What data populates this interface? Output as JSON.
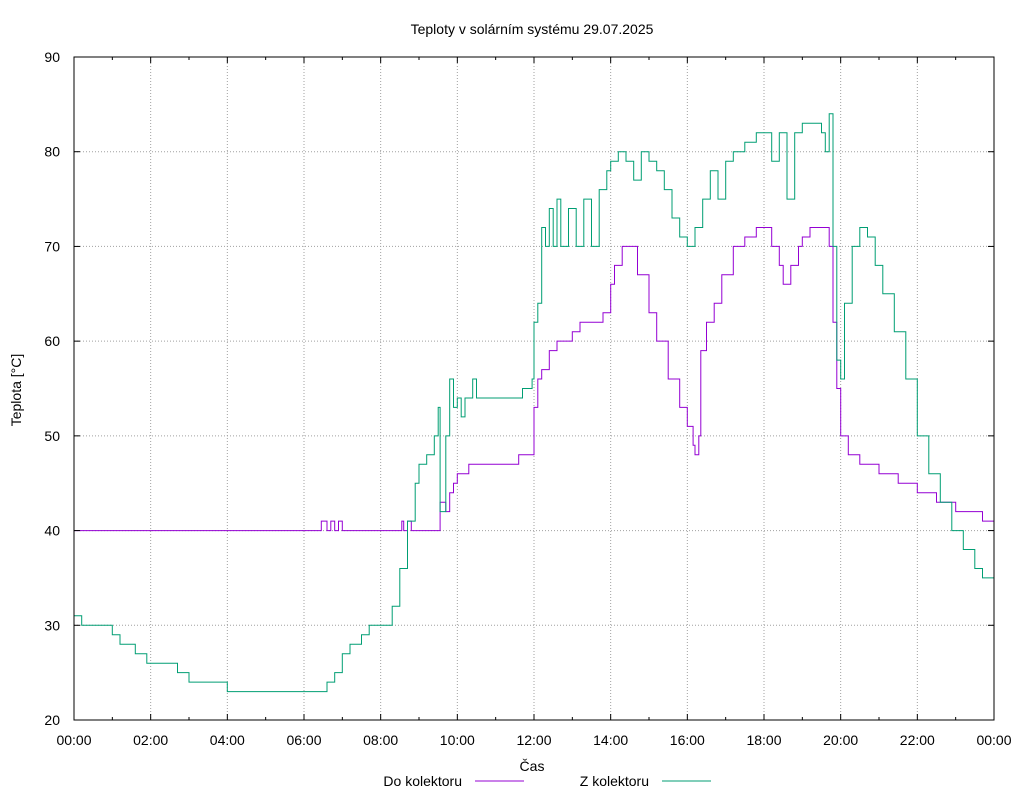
{
  "chart_data": {
    "type": "line",
    "title": "Teploty v solárním systému 29.07.2025",
    "xlabel": "Čas",
    "ylabel": "Teplota [°C]",
    "xlim": [
      0,
      24
    ],
    "ylim": [
      20,
      90
    ],
    "grid": true,
    "legend_position": "bottom-center",
    "x_ticks": [
      0,
      2,
      4,
      6,
      8,
      10,
      12,
      14,
      16,
      18,
      20,
      22,
      24
    ],
    "x_tick_labels": [
      "00:00",
      "02:00",
      "04:00",
      "06:00",
      "08:00",
      "10:00",
      "12:00",
      "14:00",
      "16:00",
      "18:00",
      "20:00",
      "22:00",
      "00:00"
    ],
    "y_ticks": [
      20,
      30,
      40,
      50,
      60,
      70,
      80,
      90
    ],
    "y_tick_labels": [
      "20",
      "30",
      "40",
      "50",
      "60",
      "70",
      "80",
      "90"
    ],
    "series": [
      {
        "name": "Do kolektoru",
        "color": "#9400d3",
        "points": [
          [
            0,
            40
          ],
          [
            6.4,
            40
          ],
          [
            6.45,
            41
          ],
          [
            6.6,
            40
          ],
          [
            6.7,
            41
          ],
          [
            6.8,
            40
          ],
          [
            6.9,
            41
          ],
          [
            7.0,
            40
          ],
          [
            8.5,
            40
          ],
          [
            8.55,
            41
          ],
          [
            8.6,
            40
          ],
          [
            8.7,
            41
          ],
          [
            8.8,
            40
          ],
          [
            9.5,
            40
          ],
          [
            9.55,
            43
          ],
          [
            9.7,
            42
          ],
          [
            9.8,
            44
          ],
          [
            9.9,
            45
          ],
          [
            10.0,
            46
          ],
          [
            10.2,
            46
          ],
          [
            10.3,
            47
          ],
          [
            11.5,
            47
          ],
          [
            11.6,
            48
          ],
          [
            11.95,
            48
          ],
          [
            12.0,
            53
          ],
          [
            12.1,
            56
          ],
          [
            12.2,
            57
          ],
          [
            12.4,
            59
          ],
          [
            12.6,
            60
          ],
          [
            13.0,
            61
          ],
          [
            13.2,
            62
          ],
          [
            13.6,
            62
          ],
          [
            13.8,
            63
          ],
          [
            14.0,
            66
          ],
          [
            14.1,
            68
          ],
          [
            14.3,
            70
          ],
          [
            14.5,
            70
          ],
          [
            14.7,
            67
          ],
          [
            15.0,
            63
          ],
          [
            15.2,
            60
          ],
          [
            15.5,
            56
          ],
          [
            15.8,
            53
          ],
          [
            16.0,
            51
          ],
          [
            16.15,
            49
          ],
          [
            16.2,
            48
          ],
          [
            16.3,
            50
          ],
          [
            16.35,
            59
          ],
          [
            16.5,
            62
          ],
          [
            16.7,
            64
          ],
          [
            16.9,
            67
          ],
          [
            17.2,
            70
          ],
          [
            17.5,
            71
          ],
          [
            17.8,
            72
          ],
          [
            18.0,
            72
          ],
          [
            18.2,
            70
          ],
          [
            18.4,
            68
          ],
          [
            18.5,
            66
          ],
          [
            18.7,
            68
          ],
          [
            18.9,
            70
          ],
          [
            19.0,
            71
          ],
          [
            19.2,
            72
          ],
          [
            19.6,
            72
          ],
          [
            19.7,
            70
          ],
          [
            19.8,
            62
          ],
          [
            19.9,
            55
          ],
          [
            20.0,
            50
          ],
          [
            20.2,
            48
          ],
          [
            20.5,
            47
          ],
          [
            21.0,
            46
          ],
          [
            21.5,
            45
          ],
          [
            22.0,
            44
          ],
          [
            22.5,
            43
          ],
          [
            23.0,
            42
          ],
          [
            23.6,
            42
          ],
          [
            23.7,
            41
          ],
          [
            24,
            41
          ]
        ]
      },
      {
        "name": "Z kolektoru",
        "color": "#009e73",
        "points": [
          [
            0,
            31
          ],
          [
            0.2,
            30
          ],
          [
            0.8,
            30
          ],
          [
            1.0,
            29
          ],
          [
            1.2,
            28
          ],
          [
            1.6,
            27
          ],
          [
            1.9,
            26
          ],
          [
            2.5,
            26
          ],
          [
            2.7,
            25
          ],
          [
            3.0,
            24
          ],
          [
            3.5,
            24
          ],
          [
            4.0,
            23
          ],
          [
            6.5,
            23
          ],
          [
            6.6,
            24
          ],
          [
            6.8,
            25
          ],
          [
            7.0,
            27
          ],
          [
            7.2,
            28
          ],
          [
            7.5,
            29
          ],
          [
            7.7,
            30
          ],
          [
            8.1,
            30
          ],
          [
            8.3,
            32
          ],
          [
            8.5,
            36
          ],
          [
            8.7,
            41
          ],
          [
            8.9,
            45
          ],
          [
            9.0,
            47
          ],
          [
            9.2,
            48
          ],
          [
            9.4,
            50
          ],
          [
            9.5,
            53
          ],
          [
            9.55,
            42
          ],
          [
            9.7,
            50
          ],
          [
            9.8,
            56
          ],
          [
            9.9,
            53
          ],
          [
            10.0,
            54
          ],
          [
            10.1,
            52
          ],
          [
            10.2,
            54
          ],
          [
            10.4,
            56
          ],
          [
            10.5,
            54
          ],
          [
            11.5,
            54
          ],
          [
            11.7,
            55
          ],
          [
            11.95,
            56
          ],
          [
            12.0,
            62
          ],
          [
            12.1,
            64
          ],
          [
            12.2,
            72
          ],
          [
            12.3,
            70
          ],
          [
            12.4,
            74
          ],
          [
            12.5,
            70
          ],
          [
            12.6,
            75
          ],
          [
            12.7,
            70
          ],
          [
            12.9,
            74
          ],
          [
            13.1,
            70
          ],
          [
            13.3,
            75
          ],
          [
            13.5,
            70
          ],
          [
            13.7,
            76
          ],
          [
            13.9,
            78
          ],
          [
            14.0,
            79
          ],
          [
            14.2,
            80
          ],
          [
            14.4,
            79
          ],
          [
            14.6,
            77
          ],
          [
            14.8,
            80
          ],
          [
            15.0,
            79
          ],
          [
            15.2,
            78
          ],
          [
            15.4,
            76
          ],
          [
            15.6,
            73
          ],
          [
            15.8,
            71
          ],
          [
            16.0,
            70
          ],
          [
            16.2,
            72
          ],
          [
            16.4,
            75
          ],
          [
            16.6,
            78
          ],
          [
            16.8,
            75
          ],
          [
            17.0,
            79
          ],
          [
            17.2,
            80
          ],
          [
            17.5,
            81
          ],
          [
            17.8,
            82
          ],
          [
            18.0,
            82
          ],
          [
            18.2,
            79
          ],
          [
            18.4,
            82
          ],
          [
            18.6,
            75
          ],
          [
            18.8,
            82
          ],
          [
            19.0,
            83
          ],
          [
            19.3,
            83
          ],
          [
            19.5,
            82
          ],
          [
            19.6,
            80
          ],
          [
            19.7,
            84
          ],
          [
            19.8,
            70
          ],
          [
            19.9,
            58
          ],
          [
            20.0,
            56
          ],
          [
            20.1,
            64
          ],
          [
            20.3,
            70
          ],
          [
            20.5,
            72
          ],
          [
            20.7,
            71
          ],
          [
            20.9,
            68
          ],
          [
            21.1,
            65
          ],
          [
            21.4,
            61
          ],
          [
            21.7,
            56
          ],
          [
            22.0,
            50
          ],
          [
            22.3,
            46
          ],
          [
            22.6,
            43
          ],
          [
            22.9,
            40
          ],
          [
            23.2,
            38
          ],
          [
            23.5,
            36
          ],
          [
            23.7,
            35
          ],
          [
            24,
            35
          ]
        ]
      }
    ]
  }
}
